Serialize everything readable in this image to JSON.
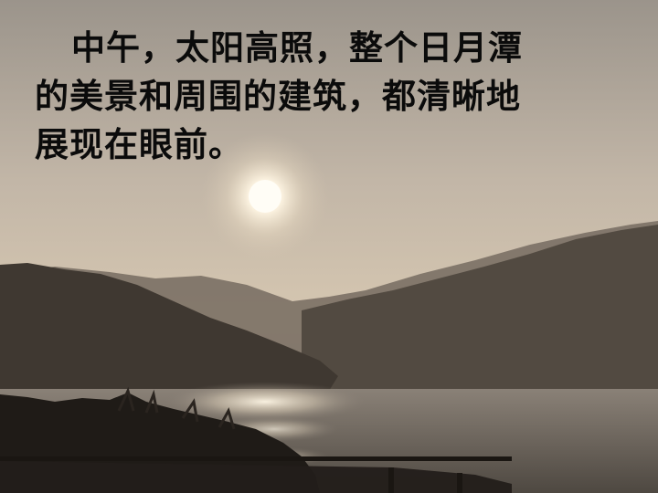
{
  "caption": {
    "line1": "中午，太阳高照，整个日月潭",
    "line2": "的美景和周围的建筑，都清晰地",
    "line3": "展现在眼前。"
  },
  "colors": {
    "sky_top": "#a19a91",
    "sky_mid": "#cdbfae",
    "horizon": "#d8c8b0",
    "sun": "#fffaf0",
    "far_hills": "#6f665c",
    "near_hills": "#4a433b",
    "left_hill": "#3a342e",
    "water": "#6b655d",
    "foreground": "#1f1a16"
  }
}
